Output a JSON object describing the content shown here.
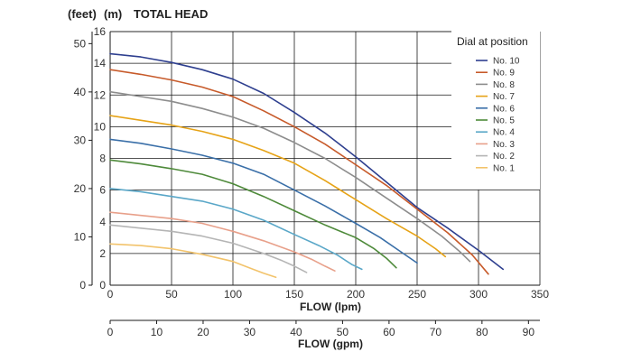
{
  "header": {
    "unit_feet": "(feet)",
    "unit_m": "(m)",
    "title": "TOTAL HEAD"
  },
  "legend": {
    "title": "Dial at position",
    "placement": "top-right"
  },
  "chart_data": {
    "type": "line",
    "title": "TOTAL HEAD",
    "xlabel": "FLOW (lpm)",
    "x2label": "FLOW (gpm)",
    "ylabel": "(m)",
    "y2label": "(feet)",
    "xlim": [
      0,
      350
    ],
    "ylim": [
      0,
      16
    ],
    "x_ticks": [
      0,
      50,
      100,
      150,
      200,
      250,
      300,
      350
    ],
    "y_ticks": [
      0,
      2,
      4,
      6,
      8,
      10,
      12,
      14,
      16
    ],
    "y_feet_ticks": [
      0,
      10,
      20,
      30,
      40,
      50
    ],
    "gpm_ticks": [
      0,
      10,
      20,
      30,
      40,
      50,
      60,
      70,
      80,
      90
    ],
    "grid": true,
    "legend_position": "top-right",
    "series": [
      {
        "name": "No. 10",
        "color": "#2e3f8f",
        "points": [
          [
            0,
            14.6
          ],
          [
            25,
            14.4
          ],
          [
            50,
            14.05
          ],
          [
            75,
            13.6
          ],
          [
            100,
            13.0
          ],
          [
            125,
            12.1
          ],
          [
            150,
            10.9
          ],
          [
            175,
            9.6
          ],
          [
            200,
            8.1
          ],
          [
            225,
            6.5
          ],
          [
            250,
            4.9
          ],
          [
            275,
            3.6
          ],
          [
            300,
            2.2
          ],
          [
            320,
            1.0
          ]
        ]
      },
      {
        "name": "No. 9",
        "color": "#c75a2a",
        "points": [
          [
            0,
            13.6
          ],
          [
            25,
            13.3
          ],
          [
            50,
            12.95
          ],
          [
            75,
            12.5
          ],
          [
            100,
            11.9
          ],
          [
            125,
            11.0
          ],
          [
            150,
            10.0
          ],
          [
            175,
            8.9
          ],
          [
            200,
            7.6
          ],
          [
            225,
            6.3
          ],
          [
            250,
            4.8
          ],
          [
            275,
            3.3
          ],
          [
            295,
            1.9
          ],
          [
            308,
            0.7
          ]
        ]
      },
      {
        "name": "No. 8",
        "color": "#8d8d8d",
        "points": [
          [
            0,
            12.2
          ],
          [
            25,
            11.9
          ],
          [
            50,
            11.6
          ],
          [
            75,
            11.15
          ],
          [
            100,
            10.6
          ],
          [
            125,
            9.9
          ],
          [
            150,
            9.0
          ],
          [
            175,
            8.0
          ],
          [
            200,
            6.8
          ],
          [
            225,
            5.5
          ],
          [
            250,
            4.2
          ],
          [
            270,
            3.1
          ],
          [
            285,
            2.1
          ],
          [
            293,
            1.5
          ]
        ]
      },
      {
        "name": "No. 7",
        "color": "#e6a317",
        "points": [
          [
            0,
            10.7
          ],
          [
            25,
            10.4
          ],
          [
            50,
            10.1
          ],
          [
            75,
            9.7
          ],
          [
            100,
            9.2
          ],
          [
            125,
            8.5
          ],
          [
            150,
            7.7
          ],
          [
            175,
            6.6
          ],
          [
            200,
            5.4
          ],
          [
            225,
            4.2
          ],
          [
            250,
            3.1
          ],
          [
            265,
            2.3
          ],
          [
            273,
            1.8
          ]
        ]
      },
      {
        "name": "No. 6",
        "color": "#3a6fa8",
        "points": [
          [
            0,
            9.2
          ],
          [
            25,
            8.95
          ],
          [
            50,
            8.6
          ],
          [
            75,
            8.2
          ],
          [
            100,
            7.7
          ],
          [
            125,
            7.0
          ],
          [
            150,
            6.0
          ],
          [
            175,
            5.0
          ],
          [
            200,
            3.9
          ],
          [
            220,
            3.0
          ],
          [
            235,
            2.2
          ],
          [
            250,
            1.4
          ]
        ]
      },
      {
        "name": "No. 5",
        "color": "#4e8a3a",
        "points": [
          [
            0,
            7.9
          ],
          [
            25,
            7.65
          ],
          [
            50,
            7.35
          ],
          [
            75,
            7.0
          ],
          [
            100,
            6.4
          ],
          [
            125,
            5.6
          ],
          [
            150,
            4.7
          ],
          [
            175,
            3.8
          ],
          [
            200,
            3.0
          ],
          [
            215,
            2.3
          ],
          [
            225,
            1.7
          ],
          [
            233,
            1.1
          ]
        ]
      },
      {
        "name": "No. 4",
        "color": "#5aa7c8",
        "points": [
          [
            0,
            6.1
          ],
          [
            25,
            5.9
          ],
          [
            50,
            5.6
          ],
          [
            75,
            5.3
          ],
          [
            100,
            4.8
          ],
          [
            125,
            4.1
          ],
          [
            150,
            3.2
          ],
          [
            170,
            2.5
          ],
          [
            185,
            1.9
          ],
          [
            197,
            1.3
          ],
          [
            205,
            1.0
          ]
        ]
      },
      {
        "name": "No. 3",
        "color": "#e8a08a",
        "points": [
          [
            0,
            4.6
          ],
          [
            25,
            4.4
          ],
          [
            50,
            4.2
          ],
          [
            75,
            3.9
          ],
          [
            100,
            3.4
          ],
          [
            125,
            2.8
          ],
          [
            150,
            2.1
          ],
          [
            165,
            1.6
          ],
          [
            175,
            1.2
          ],
          [
            183,
            0.9
          ]
        ]
      },
      {
        "name": "No. 2",
        "color": "#b5b5b5",
        "points": [
          [
            0,
            3.8
          ],
          [
            25,
            3.6
          ],
          [
            50,
            3.4
          ],
          [
            75,
            3.1
          ],
          [
            100,
            2.65
          ],
          [
            125,
            2.0
          ],
          [
            140,
            1.55
          ],
          [
            150,
            1.2
          ],
          [
            160,
            0.8
          ]
        ]
      },
      {
        "name": "No. 1",
        "color": "#f2c36b",
        "points": [
          [
            0,
            2.6
          ],
          [
            25,
            2.5
          ],
          [
            50,
            2.3
          ],
          [
            75,
            1.95
          ],
          [
            100,
            1.5
          ],
          [
            115,
            1.05
          ],
          [
            125,
            0.75
          ],
          [
            135,
            0.5
          ]
        ]
      }
    ]
  }
}
